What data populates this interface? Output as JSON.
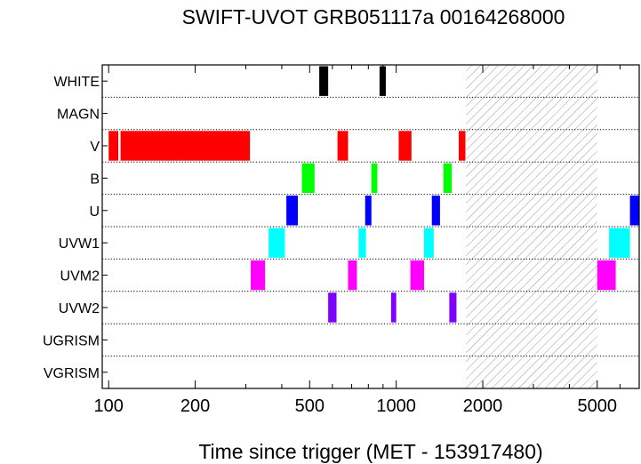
{
  "chart_data": {
    "type": "bar",
    "title": "SWIFT-UVOT GRB051117a 00164268000",
    "xlabel": "Time since trigger (MET - 153917480)",
    "ylabel": "",
    "x_scale": "log",
    "xlim": [
      95,
      7000
    ],
    "x_ticks": [
      100,
      200,
      500,
      1000,
      2000,
      5000
    ],
    "x_tick_labels": [
      "100",
      "200",
      "500",
      "1000",
      "2000",
      "5000"
    ],
    "filters": [
      "WHITE",
      "MAGN",
      "V",
      "B",
      "U",
      "UVW1",
      "UVM2",
      "UVW2",
      "UGRISM",
      "VGRISM"
    ],
    "shaded_interval": [
      1750,
      5000
    ],
    "series": [
      {
        "name": "WHITE",
        "color": "#000000",
        "intervals": [
          [
            540,
            580
          ],
          [
            875,
            920
          ]
        ]
      },
      {
        "name": "MAGN",
        "color": "#000000",
        "intervals": []
      },
      {
        "name": "V",
        "color": "#ff0000",
        "intervals": [
          [
            100,
            108
          ],
          [
            110,
            310
          ],
          [
            625,
            680
          ],
          [
            1020,
            1130
          ],
          [
            1650,
            1740
          ]
        ]
      },
      {
        "name": "B",
        "color": "#00ff00",
        "intervals": [
          [
            470,
            520
          ],
          [
            820,
            860
          ],
          [
            1460,
            1560
          ]
        ]
      },
      {
        "name": "U",
        "color": "#0000ff",
        "intervals": [
          [
            415,
            455
          ],
          [
            780,
            820
          ],
          [
            1330,
            1420
          ]
        ]
      },
      {
        "name": "UVW1",
        "color": "#00ffff",
        "intervals": [
          [
            360,
            410
          ],
          [
            740,
            785
          ],
          [
            1250,
            1350
          ]
        ]
      },
      {
        "name": "UVM2",
        "color": "#ff00ff",
        "intervals": [
          [
            312,
            350
          ],
          [
            680,
            730
          ],
          [
            1120,
            1250
          ],
          [
            5000,
            5800
          ]
        ]
      },
      {
        "name": "UVW2",
        "color": "#8000ff",
        "intervals": [
          [
            580,
            620
          ],
          [
            960,
            1000
          ],
          [
            1530,
            1620
          ]
        ]
      },
      {
        "name": "UGRISM",
        "color": "#000000",
        "intervals": []
      },
      {
        "name": "VGRISM",
        "color": "#000000",
        "intervals": []
      }
    ],
    "extra_segments": [
      {
        "filter": "UVW1",
        "color": "#00ffff",
        "interval": [
          5500,
          6500
        ]
      },
      {
        "filter": "U",
        "color": "#0000ff",
        "interval": [
          6500,
          7000
        ]
      }
    ]
  }
}
